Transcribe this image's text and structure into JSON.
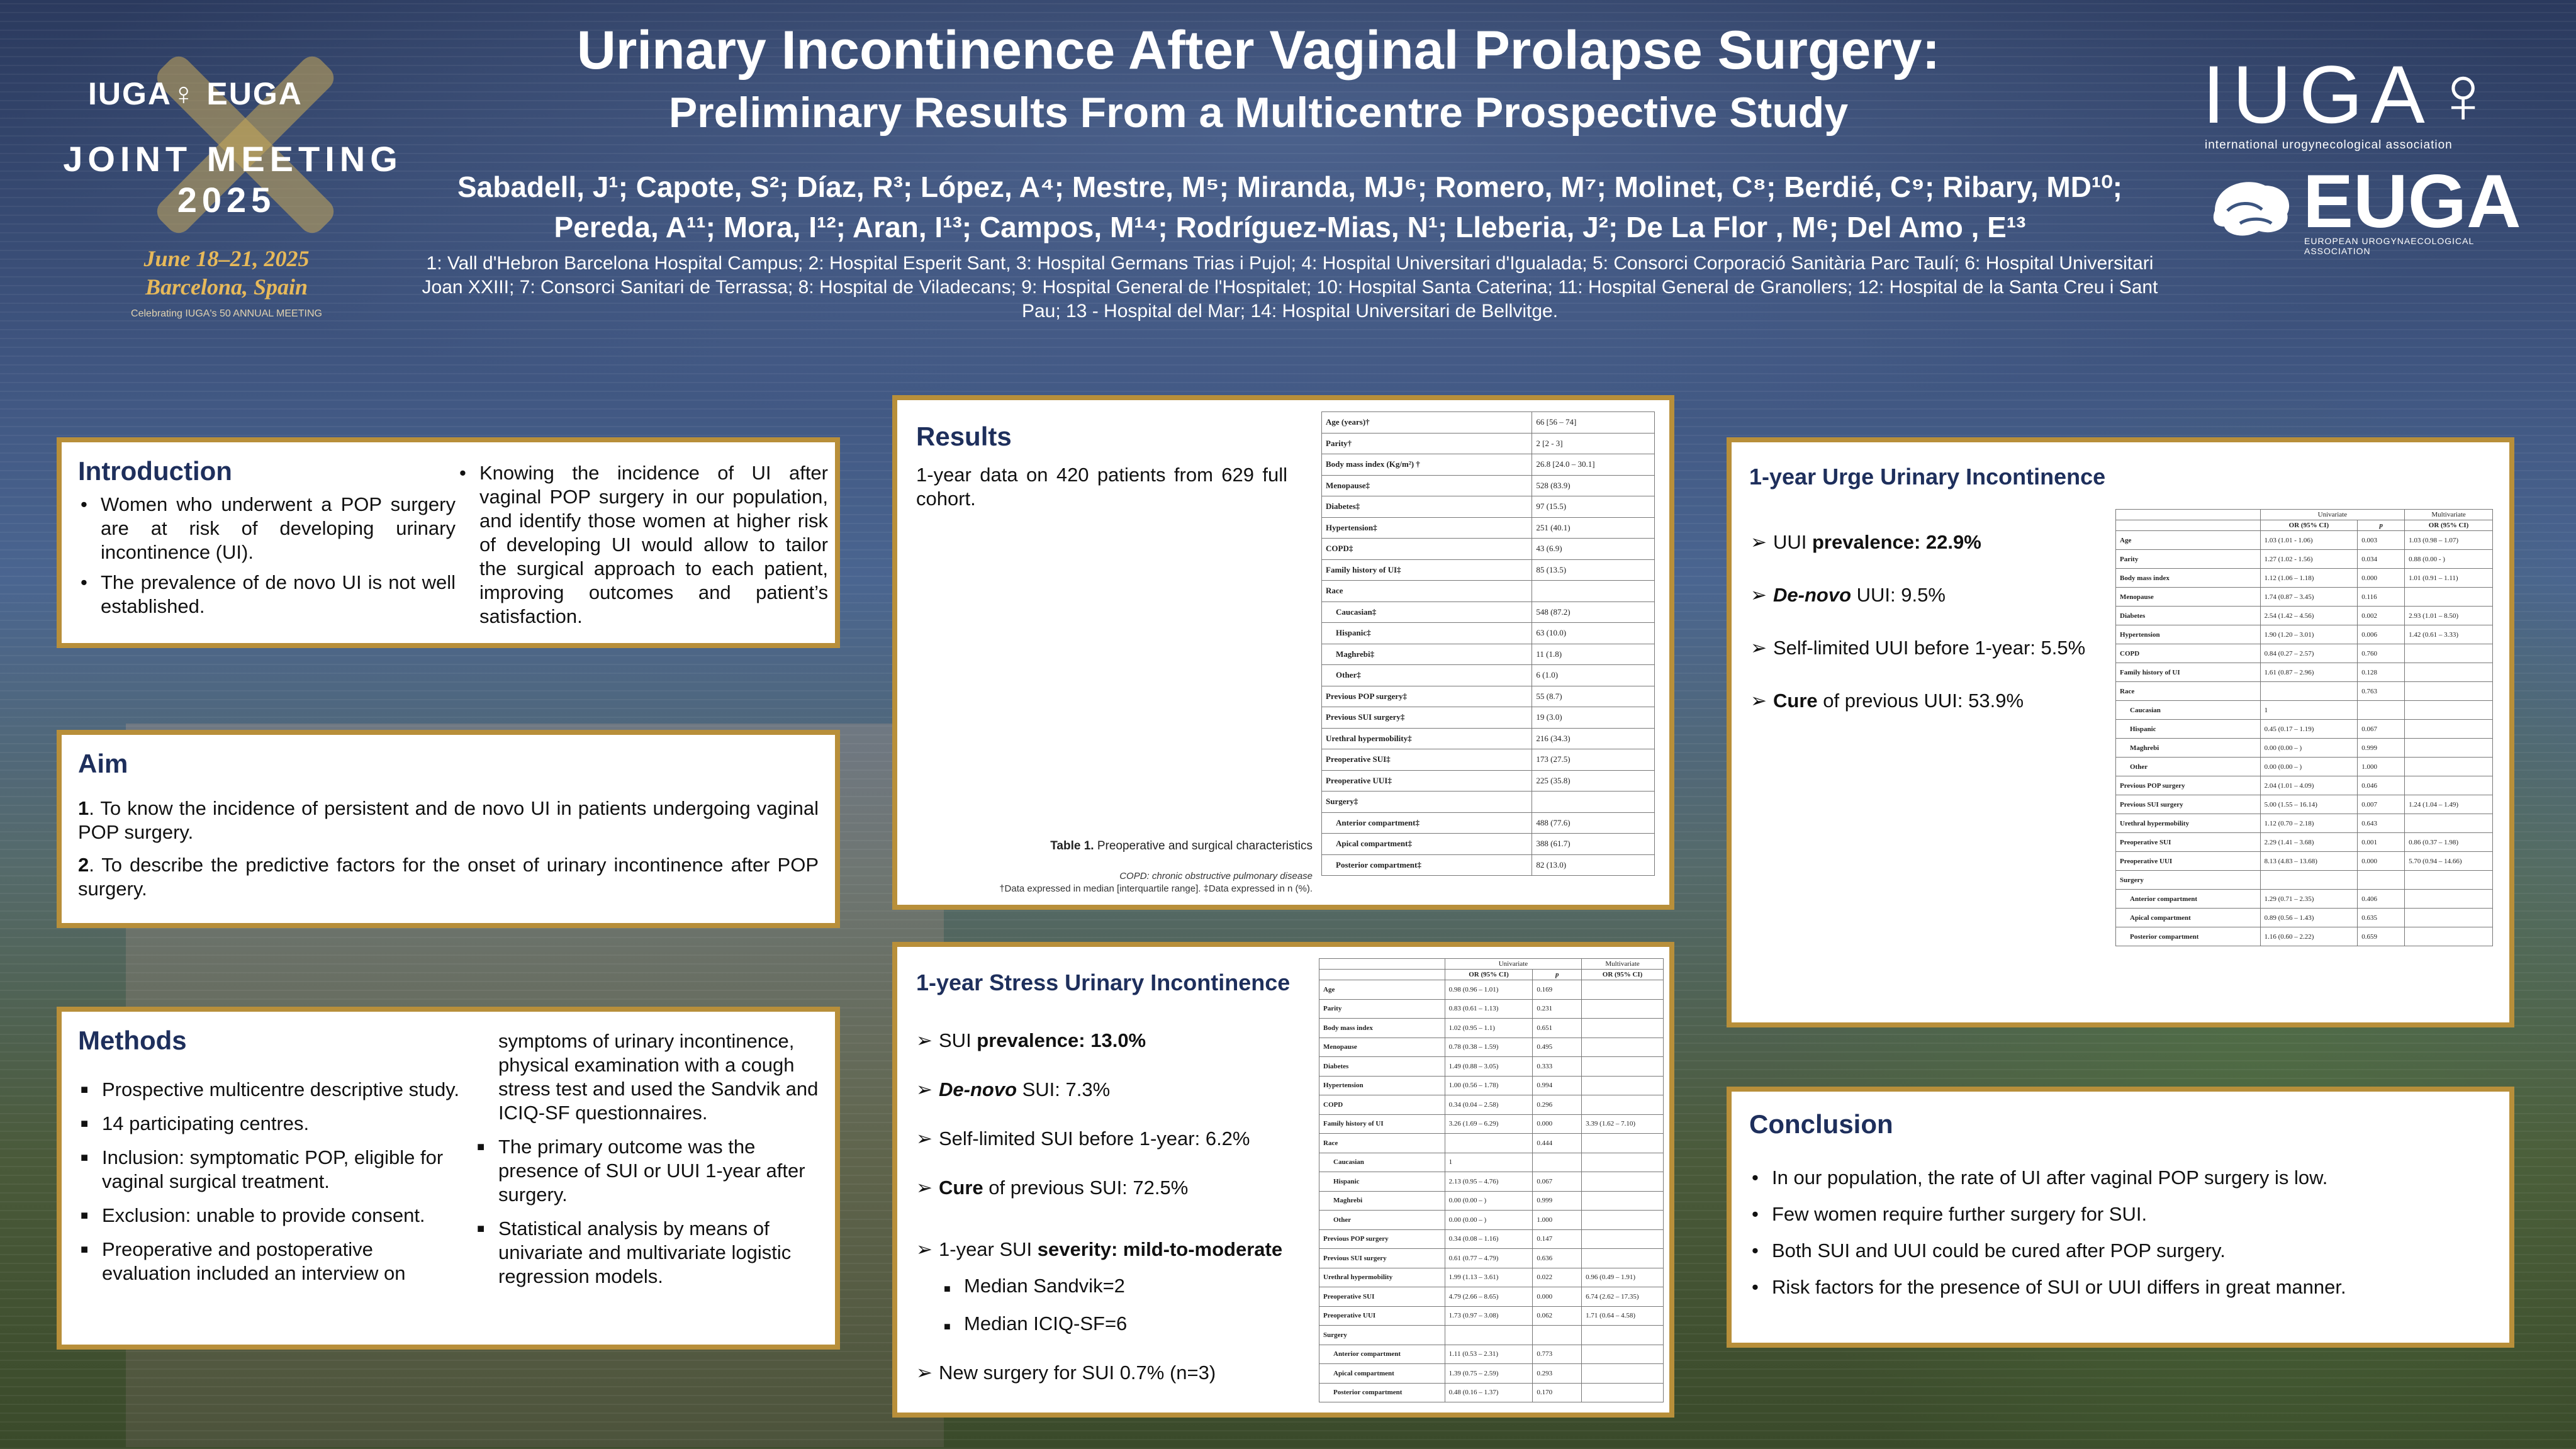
{
  "header": {
    "title": "Urinary Incontinence After Vaginal Prolapse Surgery:",
    "subtitle": "Preliminary Results From a Multicentre Prospective Study",
    "authors_line1": "Sabadell, J¹; Capote, S²; Díaz, R³; López, A⁴; Mestre, M⁵; Miranda, MJ⁶; Romero, M⁷; Molinet, C⁸; Berdié, C⁹; Ribary, MD¹⁰;",
    "authors_line2": "Pereda, A¹¹; Mora, I¹²; Aran, I¹³; Campos, M¹⁴; Rodríguez-Mias, N¹; Lleberia, J²; De La Flor , M⁶; Del Amo , E¹³",
    "affiliations": "1: Vall d'Hebron Barcelona Hospital Campus; 2: Hospital Esperit Sant, 3: Hospital Germans Trias i Pujol; 4: Hospital Universitari d'Igualada; 5: Consorci Corporació Sanitària Parc Taulí; 6: Hospital Universitari Joan XXIII; 7: Consorci Sanitari de Terrassa; 8: Hospital de Viladecans; 9: Hospital General de l'Hospitalet; 10: Hospital Santa Caterina; 11: Hospital General de Granollers; 12: Hospital de la Santa Creu i Sant Pau; 13 - Hospital del Mar; 14: Hospital Universitari de Bellvitge."
  },
  "logo_left": {
    "brand": "IUGA♀ EUGA",
    "joint": "JOINT MEETING",
    "year": "2025",
    "dates": "June 18–21, 2025",
    "city": "Barcelona, Spain",
    "small": "Celebrating IUGA's 50 ANNUAL MEETING"
  },
  "logo_right": {
    "iuga": "IUGA♀",
    "iuga_sub": "international urogynecological association",
    "euga": "EUGA",
    "euga_sub": "EUROPEAN UROGYNAECOLOGICAL ASSOCIATION"
  },
  "introduction": {
    "heading": "Introduction",
    "left": [
      "Women who underwent a POP surgery are at risk of developing urinary incontinence (UI).",
      "The prevalence of de novo UI is not well established."
    ],
    "right": "Knowing the incidence of UI after vaginal POP surgery in our population, and identify those women at higher risk of developing UI would allow to tailor the surgical approach to each patient, improving outcomes and patient’s satisfaction."
  },
  "aim": {
    "heading": "Aim",
    "items": [
      {
        "num": "1",
        "text": ". To know the incidence of persistent and de novo UI in patients undergoing vaginal POP surgery."
      },
      {
        "num": "2",
        "text": ". To describe the predictive factors for the onset of urinary incontinence after POP surgery."
      }
    ]
  },
  "methods": {
    "heading": "Methods",
    "left": [
      "Prospective multicentre descriptive study.",
      "14 participating centres.",
      "Inclusion: symptomatic POP, eligible for vaginal surgical treatment.",
      "Exclusion: unable to provide consent.",
      "Preoperative and postoperative evaluation included an interview on"
    ],
    "right_cont": "symptoms of urinary incontinence, physical examination with a cough stress test and used the Sandvik and ICIQ-SF questionnaires.",
    "right": [
      "The primary outcome was the presence of SUI or UUI 1-year after surgery.",
      "Statistical analysis by means of univariate and multivariate logistic regression models."
    ]
  },
  "results": {
    "heading": "Results",
    "text": "1-year data on 420 patients from 629 full cohort.",
    "caption_bold": "Table 1.",
    "caption": " Preoperative and surgical characteristics",
    "note1": "COPD: chronic obstructive pulmonary disease",
    "note2": "†Data expressed in median [interquartile range].  ‡Data expressed in n (%).",
    "table": [
      {
        "label": "Age (years)†",
        "value": "66 [56 – 74]",
        "indent": false
      },
      {
        "label": "Parity†",
        "value": "2 [2 - 3]",
        "indent": false
      },
      {
        "label": "Body mass index (Kg/m²) †",
        "value": "26.8 [24.0 – 30.1]",
        "indent": false
      },
      {
        "label": "Menopause‡",
        "value": "528 (83.9)",
        "indent": false
      },
      {
        "label": "Diabetes‡",
        "value": "97 (15.5)",
        "indent": false
      },
      {
        "label": "Hypertension‡",
        "value": "251 (40.1)",
        "indent": false
      },
      {
        "label": "COPD‡",
        "value": "43 (6.9)",
        "indent": false
      },
      {
        "label": "Family history of UI‡",
        "value": "85 (13.5)",
        "indent": false
      },
      {
        "label": "Race",
        "value": "",
        "indent": false
      },
      {
        "label": "Caucasian‡",
        "value": "548 (87.2)",
        "indent": true
      },
      {
        "label": "Hispanic‡",
        "value": "63 (10.0)",
        "indent": true
      },
      {
        "label": "Maghrebi‡",
        "value": "11 (1.8)",
        "indent": true
      },
      {
        "label": "Other‡",
        "value": "6 (1.0)",
        "indent": true
      },
      {
        "label": "Previous POP surgery‡",
        "value": "55 (8.7)",
        "indent": false
      },
      {
        "label": "Previous SUI surgery‡",
        "value": "19 (3.0)",
        "indent": false
      },
      {
        "label": "Urethral hypermobility‡",
        "value": "216 (34.3)",
        "indent": false
      },
      {
        "label": "Preoperative SUI‡",
        "value": "173 (27.5)",
        "indent": false
      },
      {
        "label": "Preoperative UUI‡",
        "value": "225 (35.8)",
        "indent": false
      },
      {
        "label": "Surgery‡",
        "value": "",
        "indent": false
      },
      {
        "label": "Anterior compartment‡",
        "value": "488 (77.6)",
        "indent": true
      },
      {
        "label": "Apical compartment‡",
        "value": "388 (61.7)",
        "indent": true
      },
      {
        "label": "Posterior compartment‡",
        "value": "82 (13.0)",
        "indent": true
      }
    ]
  },
  "sui": {
    "heading": "1-year Stress Urinary Incontinence",
    "items": [
      {
        "pre": "SUI ",
        "bold": "prevalence: 13.0%",
        "post": ""
      },
      {
        "pre": "",
        "bold": "De-novo",
        "post": " SUI: 7.3%",
        "italic": true
      },
      {
        "pre": "Self-limited SUI before 1-year: 6.2%",
        "bold": "",
        "post": ""
      },
      {
        "pre": "",
        "bold": "Cure",
        "post": " of previous SUI: 72.5%"
      }
    ],
    "severity_pre": "1-year SUI ",
    "severity_bold": "severity: mild-to-moderate",
    "sub": [
      "Median Sandvik=2",
      "Median ICIQ-SF=6"
    ],
    "new_surgery": "New surgery for SUI 0.7% (n=3)",
    "table_head": {
      "univariate": "Univariate",
      "multivariate": "Multivariate",
      "or": "OR (95% CI)",
      "p": "p",
      "or2": "OR (95% CI)"
    },
    "table": [
      {
        "label": "Age",
        "or": "0.98 (0.96 – 1.01)",
        "p": "0.169",
        "mor": "",
        "indent": false
      },
      {
        "label": "Parity",
        "or": "0.83 (0.61 – 1.13)",
        "p": "0.231",
        "mor": "",
        "indent": false
      },
      {
        "label": "Body mass index",
        "or": "1.02 (0.95 – 1.1)",
        "p": "0.651",
        "mor": "",
        "indent": false
      },
      {
        "label": "Menopause",
        "or": "0.78 (0.38 – 1.59)",
        "p": "0.495",
        "mor": "",
        "indent": false
      },
      {
        "label": "Diabetes",
        "or": "1.49 (0.88 – 3.05)",
        "p": "0.333",
        "mor": "",
        "indent": false
      },
      {
        "label": "Hypertension",
        "or": "1.00 (0.56 – 1.78)",
        "p": "0.994",
        "mor": "",
        "indent": false
      },
      {
        "label": "COPD",
        "or": "0.34 (0.04 – 2.58)",
        "p": "0.296",
        "mor": "",
        "indent": false
      },
      {
        "label": "Family history of UI",
        "or": "3.26 (1.69 – 6.29)",
        "p": "0.000",
        "mor": "3.39 (1.62 – 7.10)",
        "indent": false
      },
      {
        "label": "Race",
        "or": "",
        "p": "0.444",
        "mor": "",
        "indent": false
      },
      {
        "label": "Caucasian",
        "or": "1",
        "p": "",
        "mor": "",
        "indent": true
      },
      {
        "label": "Hispanic",
        "or": "2.13 (0.95 – 4.76)",
        "p": "0.067",
        "mor": "",
        "indent": true
      },
      {
        "label": "Maghrebi",
        "or": "0.00 (0.00 – )",
        "p": "0.999",
        "mor": "",
        "indent": true
      },
      {
        "label": "Other",
        "or": "0.00 (0.00 – )",
        "p": "1.000",
        "mor": "",
        "indent": true
      },
      {
        "label": "Previous POP surgery",
        "or": "0.34 (0.08 – 1.16)",
        "p": "0.147",
        "mor": "",
        "indent": false
      },
      {
        "label": "Previous SUI surgery",
        "or": "0.61 (0.77 – 4.79)",
        "p": "0.636",
        "mor": "",
        "indent": false
      },
      {
        "label": "Urethral hypermobility",
        "or": "1.99 (1.13 – 3.61)",
        "p": "0.022",
        "mor": "0.96 (0.49 – 1.91)",
        "indent": false
      },
      {
        "label": "Preoperative SUI",
        "or": "4.79 (2.66 – 8.65)",
        "p": "0.000",
        "mor": "6.74 (2.62 – 17.35)",
        "indent": false
      },
      {
        "label": "Preoperative UUI",
        "or": "1.73 (0.97 – 3.08)",
        "p": "0.062",
        "mor": "1.71 (0.64 – 4.58)",
        "indent": false
      },
      {
        "label": "Surgery",
        "or": "",
        "p": "",
        "mor": "",
        "indent": false
      },
      {
        "label": "Anterior compartment",
        "or": "1.11 (0.53 – 2.31)",
        "p": "0.773",
        "mor": "",
        "indent": true
      },
      {
        "label": "Apical compartment",
        "or": "1.39 (0.75 – 2.59)",
        "p": "0.293",
        "mor": "",
        "indent": true
      },
      {
        "label": "Posterior compartment",
        "or": "0.48 (0.16 – 1.37)",
        "p": "0.170",
        "mor": "",
        "indent": true
      }
    ]
  },
  "uui": {
    "heading": "1-year Urge Urinary Incontinence",
    "items": [
      {
        "pre": "UUI ",
        "bold": "prevalence: 22.9%",
        "post": ""
      },
      {
        "pre": "",
        "bold": "De-novo",
        "post": " UUI: 9.5%",
        "italic": true
      },
      {
        "pre": "Self-limited UUI before 1-year: 5.5%",
        "bold": "",
        "post": ""
      },
      {
        "pre": "",
        "bold": "Cure",
        "post": " of previous UUI: 53.9%"
      }
    ],
    "table_head": {
      "univariate": "Univariate",
      "multivariate": "Multivariate",
      "or": "OR (95% CI)",
      "p": "p",
      "or2": "OR (95% CI)"
    },
    "table": [
      {
        "label": "Age",
        "or": "1.03 (1.01 - 1.06)",
        "p": "0.003",
        "mor": "1.03 (0.98 – 1.07)",
        "indent": false
      },
      {
        "label": "Parity",
        "or": "1.27 (1.02 - 1.56)",
        "p": "0.034",
        "mor": "0.88 (0.00 - )",
        "indent": false
      },
      {
        "label": "Body mass index",
        "or": "1.12 (1.06 – 1.18)",
        "p": "0.000",
        "mor": "1.01 (0.91 – 1.11)",
        "indent": false
      },
      {
        "label": "Menopause",
        "or": "1.74 (0.87 – 3.45)",
        "p": "0.116",
        "mor": "",
        "indent": false
      },
      {
        "label": "Diabetes",
        "or": "2.54 (1.42 – 4.56)",
        "p": "0.002",
        "mor": "2.93 (1.01 – 8.50)",
        "indent": false
      },
      {
        "label": "Hypertension",
        "or": "1.90 (1.20 – 3.01)",
        "p": "0.006",
        "mor": "1.42 (0.61 – 3.33)",
        "indent": false
      },
      {
        "label": "COPD",
        "or": "0.84 (0.27 – 2.57)",
        "p": "0.760",
        "mor": "",
        "indent": false
      },
      {
        "label": "Family history of UI",
        "or": "1.61 (0.87 – 2.96)",
        "p": "0.128",
        "mor": "",
        "indent": false
      },
      {
        "label": "Race",
        "or": "",
        "p": "0.763",
        "mor": "",
        "indent": false
      },
      {
        "label": "Caucasian",
        "or": "1",
        "p": "",
        "mor": "",
        "indent": true
      },
      {
        "label": "Hispanic",
        "or": "0.45 (0.17 – 1.19)",
        "p": "0.067",
        "mor": "",
        "indent": true
      },
      {
        "label": "Maghrebi",
        "or": "0.00 (0.00 – )",
        "p": "0.999",
        "mor": "",
        "indent": true
      },
      {
        "label": "Other",
        "or": "0.00 (0.00 – )",
        "p": "1.000",
        "mor": "",
        "indent": true
      },
      {
        "label": "Previous POP surgery",
        "or": "2.04 (1.01 – 4.09)",
        "p": "0.046",
        "mor": "",
        "indent": false
      },
      {
        "label": "Previous SUI surgery",
        "or": "5.00 (1.55 – 16.14)",
        "p": "0.007",
        "mor": "1.24 (1.04 – 1.49)",
        "indent": false
      },
      {
        "label": "Urethral hypermobility",
        "or": "1.12 (0.70 – 2.18)",
        "p": "0.643",
        "mor": "",
        "indent": false
      },
      {
        "label": "Preoperative SUI",
        "or": "2.29 (1.41 – 3.68)",
        "p": "0.001",
        "mor": "0.86 (0.37 – 1.98)",
        "indent": false
      },
      {
        "label": "Preoperative UUI",
        "or": "8.13 (4.83 – 13.68)",
        "p": "0.000",
        "mor": "5.70 (0.94 – 14.66)",
        "indent": false
      },
      {
        "label": "Surgery",
        "or": "",
        "p": "",
        "mor": "",
        "indent": false
      },
      {
        "label": "Anterior compartment",
        "or": "1.29 (0.71 – 2.35)",
        "p": "0.406",
        "mor": "",
        "indent": true
      },
      {
        "label": "Apical compartment",
        "or": "0.89 (0.56 – 1.43)",
        "p": "0.635",
        "mor": "",
        "indent": true
      },
      {
        "label": "Posterior compartment",
        "or": "1.16 (0.60 – 2.22)",
        "p": "0.659",
        "mor": "",
        "indent": true
      }
    ]
  },
  "conclusion": {
    "heading": "Conclusion",
    "items": [
      "In our population, the rate of UI after vaginal POP surgery is low.",
      "Few women require further surgery for SUI.",
      "Both SUI and UUI could be cured after POP surgery.",
      "Risk factors for the presence of SUI or UUI differs in great manner."
    ]
  }
}
